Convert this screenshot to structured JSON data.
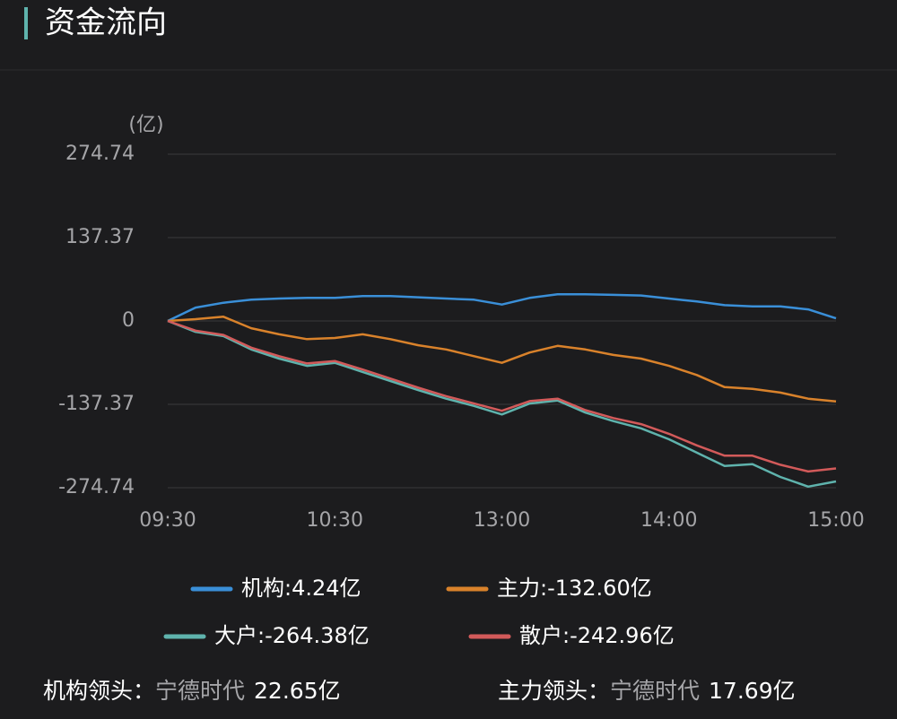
{
  "header": {
    "title": "资金流向"
  },
  "chart_data": {
    "type": "line",
    "y_unit": "(亿)",
    "x": [
      0,
      10,
      20,
      30,
      40,
      50,
      60,
      70,
      80,
      90,
      100,
      110,
      120,
      130,
      140,
      150,
      160,
      170,
      180,
      190,
      200,
      210,
      220,
      230,
      240
    ],
    "xlim": [
      0,
      240
    ],
    "xticks": [
      {
        "value": 0,
        "label": "09:30"
      },
      {
        "value": 60,
        "label": "10:30"
      },
      {
        "value": 120,
        "label": "13:00"
      },
      {
        "value": 180,
        "label": "14:00"
      },
      {
        "value": 240,
        "label": "15:00"
      }
    ],
    "ylim": [
      -274.74,
      274.74
    ],
    "yticks": [
      274.74,
      137.37,
      0,
      -137.37,
      -274.74
    ],
    "grid": true,
    "series": [
      {
        "name": "机构:4.24亿",
        "color": "#3a8fd8",
        "values": [
          0,
          22,
          30,
          35,
          37,
          38,
          38,
          41,
          41,
          39,
          37,
          35,
          27,
          38,
          44,
          44,
          43,
          42,
          37,
          32,
          26,
          24,
          24,
          19,
          4.24
        ]
      },
      {
        "name": "主力:-132.60亿",
        "color": "#d9822b",
        "values": [
          0,
          3,
          7,
          -12,
          -22,
          -30,
          -28,
          -22,
          -30,
          -40,
          -47,
          -58,
          -69,
          -52,
          -41,
          -47,
          -56,
          -62,
          -74,
          -89,
          -109,
          -112,
          -118,
          -128,
          -132.6
        ]
      },
      {
        "name": "大户:-264.38亿",
        "color": "#5fb3ad",
        "values": [
          0,
          -18,
          -25,
          -47,
          -62,
          -74,
          -69,
          -84,
          -99,
          -114,
          -128,
          -140,
          -154,
          -136,
          -131,
          -151,
          -165,
          -177,
          -195,
          -217,
          -239,
          -236,
          -257,
          -273,
          -264.38
        ]
      },
      {
        "name": "散户:-242.96亿",
        "color": "#d25a5a",
        "values": [
          0,
          -16,
          -23,
          -44,
          -58,
          -70,
          -66,
          -80,
          -95,
          -110,
          -124,
          -136,
          -148,
          -132,
          -128,
          -147,
          -160,
          -170,
          -186,
          -205,
          -222,
          -222,
          -237,
          -248,
          -242.96
        ]
      }
    ]
  },
  "footer": {
    "items": [
      {
        "label": "机构领头：",
        "stock": "宁德时代",
        "amount": "22.65亿"
      },
      {
        "label": "主力领头：",
        "stock": "宁德时代",
        "amount": "17.69亿"
      }
    ]
  }
}
